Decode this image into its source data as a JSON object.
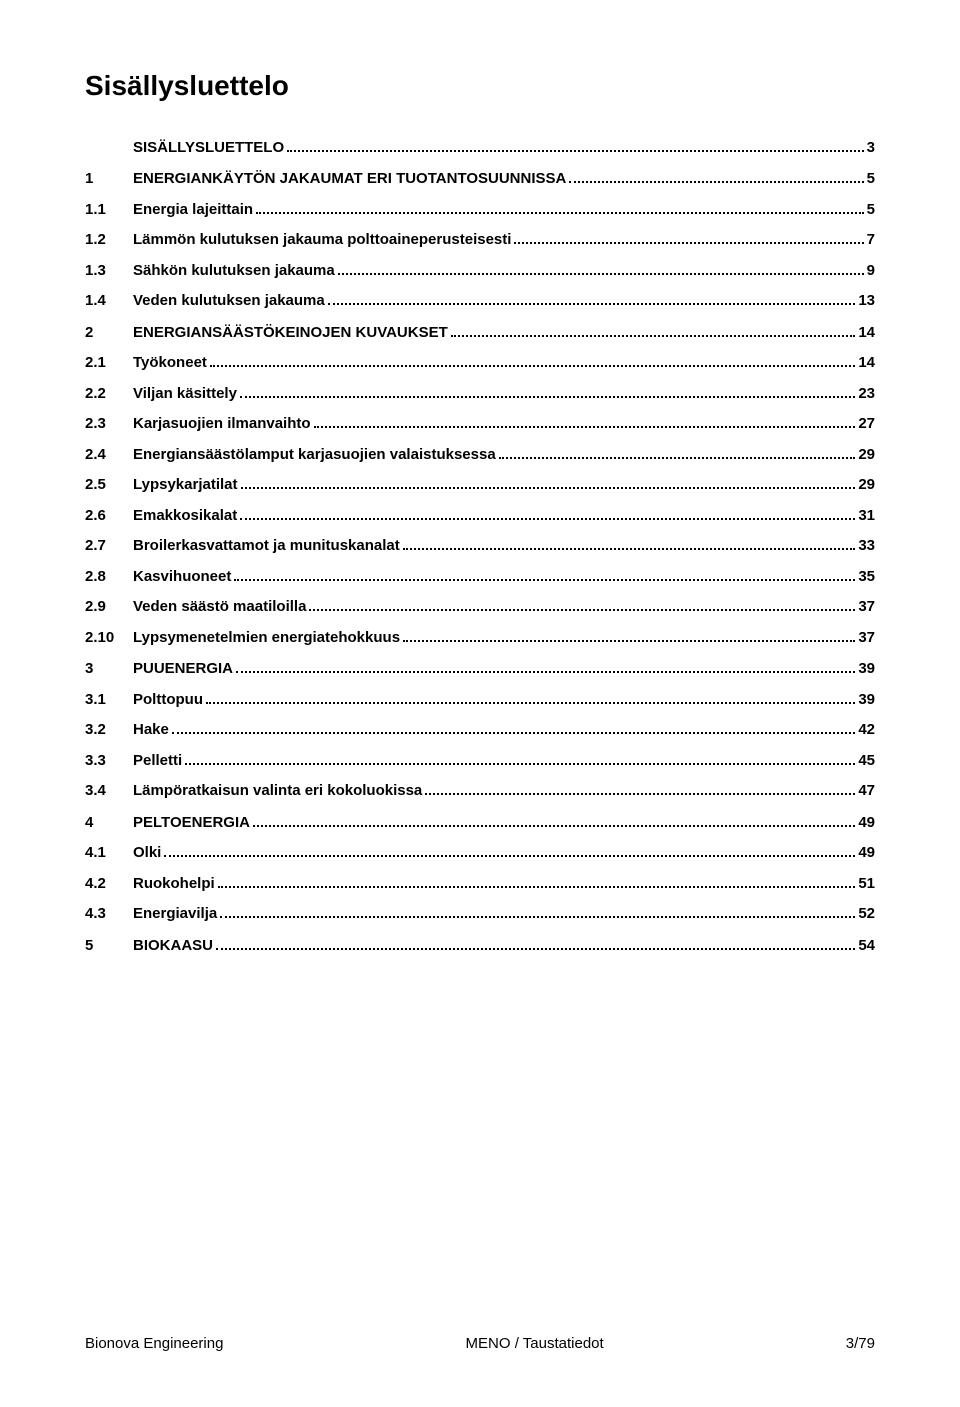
{
  "title": "Sisällysluettelo",
  "toc": [
    {
      "num": "",
      "label": "SISÄLLYSLUETTELO",
      "page": "3",
      "bold": true,
      "gap": false
    },
    {
      "num": "1",
      "label": "ENERGIANKÄYTÖN JAKAUMAT ERI TUOTANTOSUUNNISSA",
      "page": "5",
      "bold": true,
      "gap": true
    },
    {
      "num": "1.1",
      "label": "Energia lajeittain",
      "page": "5",
      "bold": true,
      "gap": false
    },
    {
      "num": "1.2",
      "label": "Lämmön kulutuksen jakauma polttoaineperusteisesti",
      "page": "7",
      "bold": true,
      "gap": false
    },
    {
      "num": "1.3",
      "label": "Sähkön kulutuksen jakauma",
      "page": "9",
      "bold": true,
      "gap": false
    },
    {
      "num": "1.4",
      "label": "Veden kulutuksen jakauma",
      "page": "13",
      "bold": true,
      "gap": false
    },
    {
      "num": "2",
      "label": "ENERGIANSÄÄSTÖKEINOJEN KUVAUKSET",
      "page": "14",
      "bold": true,
      "gap": true
    },
    {
      "num": "2.1",
      "label": "Työkoneet",
      "page": "14",
      "bold": true,
      "gap": false
    },
    {
      "num": "2.2",
      "label": "Viljan käsittely",
      "page": "23",
      "bold": true,
      "gap": false
    },
    {
      "num": "2.3",
      "label": "Karjasuojien ilmanvaihto",
      "page": "27",
      "bold": true,
      "gap": false
    },
    {
      "num": "2.4",
      "label": "Energiansäästölamput karjasuojien valaistuksessa",
      "page": "29",
      "bold": true,
      "gap": false
    },
    {
      "num": "2.5",
      "label": "Lypsykarjatilat",
      "page": "29",
      "bold": true,
      "gap": false
    },
    {
      "num": "2.6",
      "label": "Emakkosikalat",
      "page": "31",
      "bold": true,
      "gap": false
    },
    {
      "num": "2.7",
      "label": "Broilerkasvattamot ja munituskanalat",
      "page": "33",
      "bold": true,
      "gap": false
    },
    {
      "num": "2.8",
      "label": "Kasvihuoneet",
      "page": "35",
      "bold": true,
      "gap": false
    },
    {
      "num": "2.9",
      "label": "Veden säästö maatiloilla",
      "page": "37",
      "bold": true,
      "gap": false
    },
    {
      "num": "2.10",
      "label": "Lypsymenetelmien energiatehokkuus",
      "page": "37",
      "bold": true,
      "gap": false
    },
    {
      "num": "3",
      "label": "PUUENERGIA",
      "page": "39",
      "bold": true,
      "gap": true
    },
    {
      "num": "3.1",
      "label": "Polttopuu",
      "page": "39",
      "bold": true,
      "gap": false
    },
    {
      "num": "3.2",
      "label": "Hake",
      "page": "42",
      "bold": true,
      "gap": false
    },
    {
      "num": "3.3",
      "label": "Pelletti",
      "page": "45",
      "bold": true,
      "gap": false
    },
    {
      "num": "3.4",
      "label": "Lämpöratkaisun valinta eri kokoluokissa",
      "page": "47",
      "bold": true,
      "gap": false
    },
    {
      "num": "4",
      "label": "PELTOENERGIA",
      "page": "49",
      "bold": true,
      "gap": true
    },
    {
      "num": "4.1",
      "label": "Olki",
      "page": "49",
      "bold": true,
      "gap": false
    },
    {
      "num": "4.2",
      "label": "Ruokohelpi",
      "page": "51",
      "bold": true,
      "gap": false
    },
    {
      "num": "4.3",
      "label": "Energiavilja",
      "page": "52",
      "bold": true,
      "gap": false
    },
    {
      "num": "5",
      "label": "BIOKAASU",
      "page": "54",
      "bold": true,
      "gap": true
    }
  ],
  "footer": {
    "left": "Bionova Engineering",
    "center": "MENO / Taustatiedot",
    "right": "3/79"
  }
}
